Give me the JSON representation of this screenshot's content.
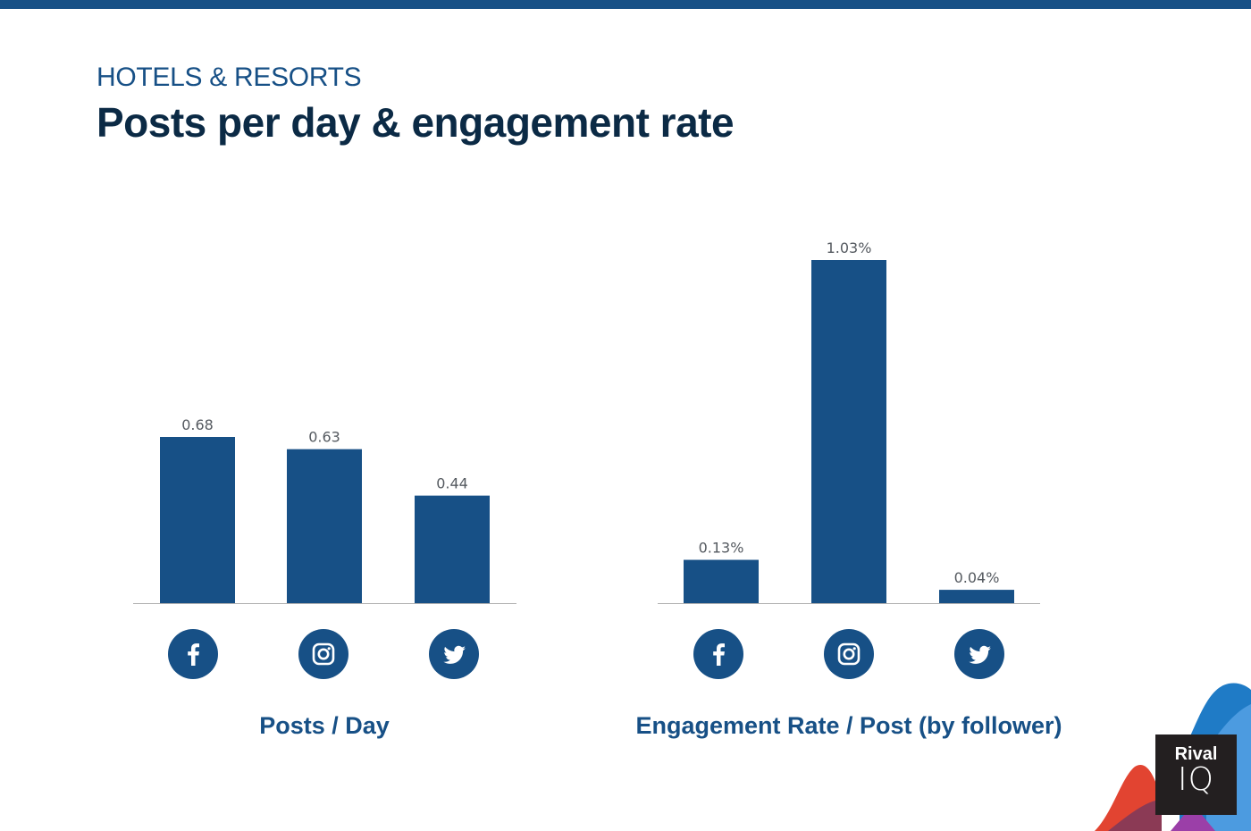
{
  "header": {
    "subtitle": "HOTELS & RESORTS",
    "title": "Posts per day & engagement rate"
  },
  "colors": {
    "bar": "#175086",
    "top_bar": "#175086",
    "title": "#0b2a45",
    "caption": "#175086",
    "label": "#555a60",
    "axis": "#b0b0b0"
  },
  "chart_data": [
    {
      "type": "bar",
      "title": "Posts / Day",
      "categories": [
        "Facebook",
        "Instagram",
        "Twitter"
      ],
      "category_icons": [
        "facebook-icon",
        "instagram-icon",
        "twitter-icon"
      ],
      "values": [
        0.68,
        0.63,
        0.44
      ],
      "data_labels": [
        "0.68",
        "0.63",
        "0.44"
      ],
      "xlabel": "Posts / Day",
      "ylabel": "",
      "ylim": [
        0,
        0.68
      ],
      "grid": false,
      "legend": "none"
    },
    {
      "type": "bar",
      "title": "Engagement Rate / Post (by follower)",
      "categories": [
        "Facebook",
        "Instagram",
        "Twitter"
      ],
      "category_icons": [
        "facebook-icon",
        "instagram-icon",
        "twitter-icon"
      ],
      "values": [
        0.13,
        1.03,
        0.04
      ],
      "data_labels": [
        "0.13%",
        "1.03%",
        "0.04%"
      ],
      "xlabel": "Engagement Rate / Post (by follower)",
      "ylabel": "",
      "ylim": [
        0,
        1.03
      ],
      "grid": false,
      "legend": "none"
    }
  ],
  "logo": {
    "line1": "Rival",
    "line2": "IQ"
  }
}
